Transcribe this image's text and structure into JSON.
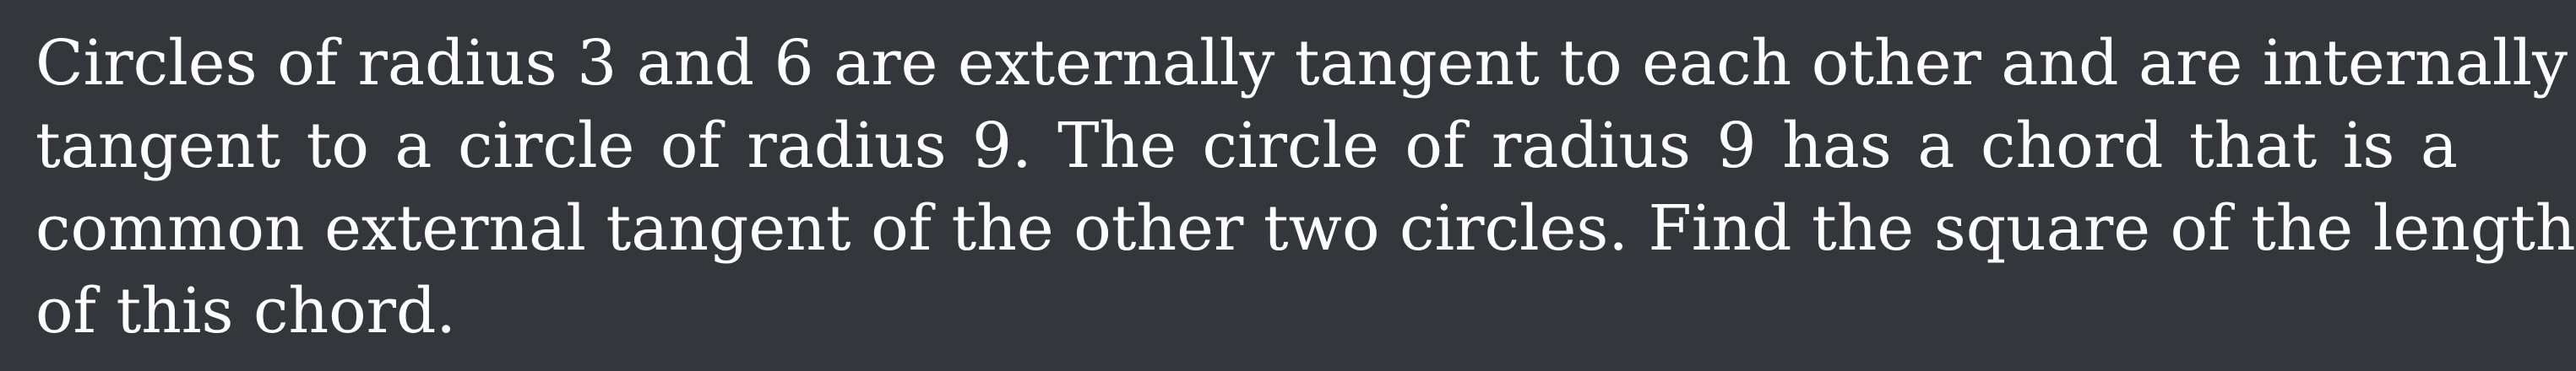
{
  "problem": {
    "lines": [
      "Circles of radius 3 and 6 are externally tangent to each other and are internally",
      "tangent to a circle of radius 9.  The circle of radius 9 has a chord that is a",
      "common external tangent of the other two circles. Find the square of the length",
      "of this chord."
    ]
  },
  "colors": {
    "background": "#33363b",
    "text": "#ffffff"
  }
}
